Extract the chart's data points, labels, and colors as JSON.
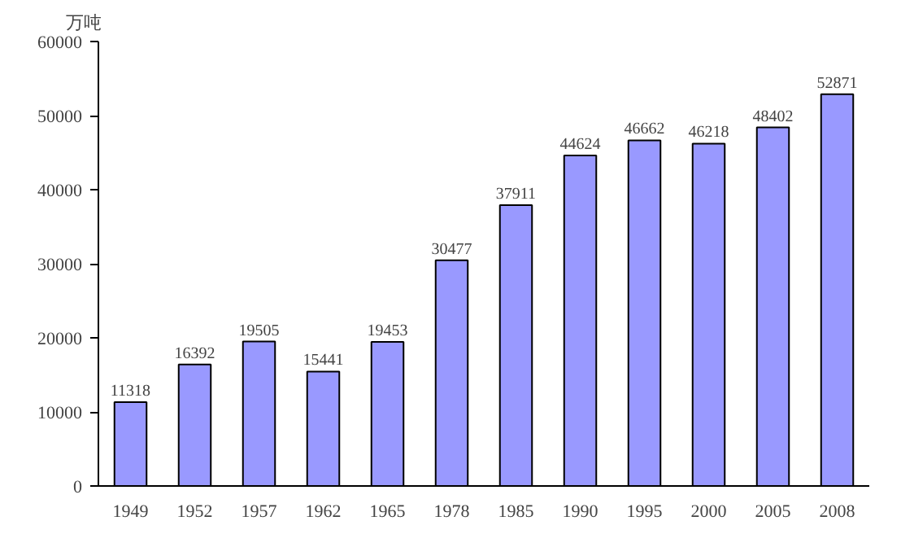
{
  "chart_data": {
    "type": "bar",
    "ylabel": "万吨",
    "categories": [
      "1949",
      "1952",
      "1957",
      "1962",
      "1965",
      "1978",
      "1985",
      "1990",
      "1995",
      "2000",
      "2005",
      "2008"
    ],
    "values": [
      11318,
      16392,
      19505,
      15441,
      19453,
      30477,
      37911,
      44624,
      46662,
      46218,
      48402,
      52871
    ],
    "color": "#9999ff",
    "ylim": [
      0,
      60000
    ],
    "yticks": [
      0,
      10000,
      20000,
      30000,
      40000,
      50000,
      60000
    ],
    "grid": false,
    "data_labels": true
  }
}
